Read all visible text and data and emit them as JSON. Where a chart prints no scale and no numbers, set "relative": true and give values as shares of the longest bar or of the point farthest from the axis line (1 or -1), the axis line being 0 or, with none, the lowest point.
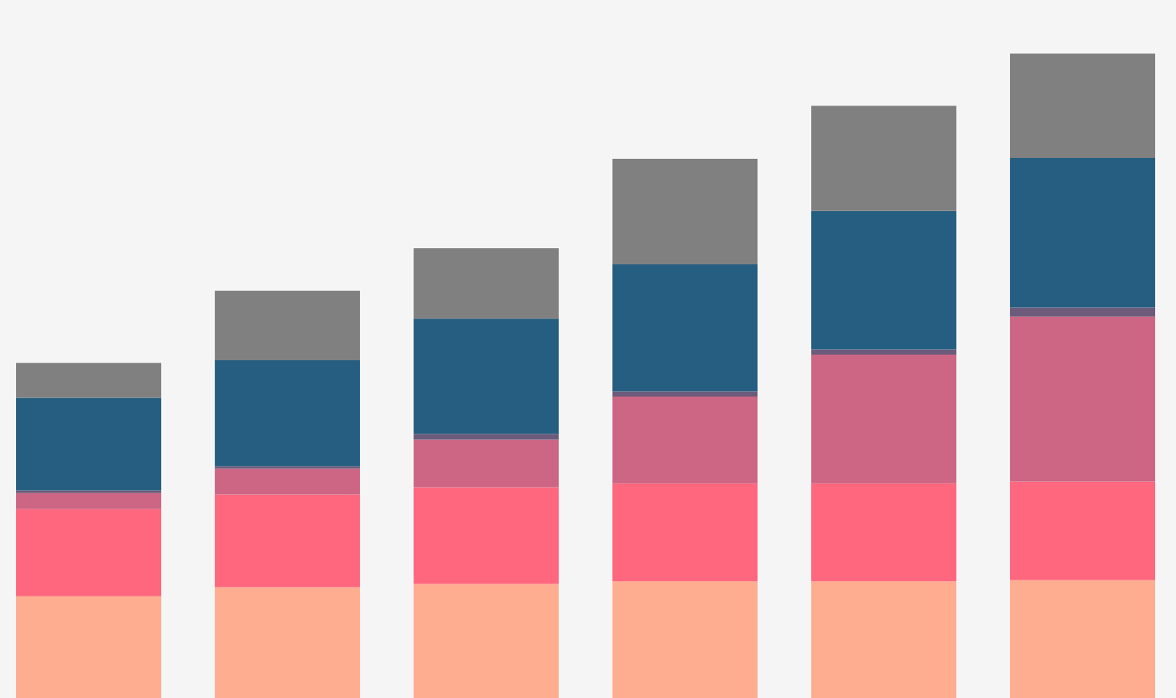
{
  "chart_data": {
    "type": "bar",
    "stacked": true,
    "relative": true,
    "categories": [
      null,
      null,
      null,
      null,
      null,
      null
    ],
    "series": [
      {
        "color": "#ffad91",
        "values": [
          0.158,
          0.172,
          0.177,
          0.181,
          0.181,
          0.183
        ]
      },
      {
        "color": "#ff677e",
        "values": [
          0.135,
          0.144,
          0.15,
          0.152,
          0.152,
          0.153
        ]
      },
      {
        "color": "#cc6684",
        "values": [
          0.025,
          0.04,
          0.074,
          0.135,
          0.2,
          0.256
        ]
      },
      {
        "color": "#6c5b7b",
        "values": [
          0.004,
          0.004,
          0.009,
          0.008,
          0.008,
          0.014
        ]
      },
      {
        "color": "#255e80",
        "values": [
          0.144,
          0.164,
          0.179,
          0.197,
          0.215,
          0.232
        ]
      },
      {
        "color": "#808080",
        "values": [
          0.054,
          0.108,
          0.109,
          0.164,
          0.163,
          0.162
        ]
      }
    ]
  }
}
